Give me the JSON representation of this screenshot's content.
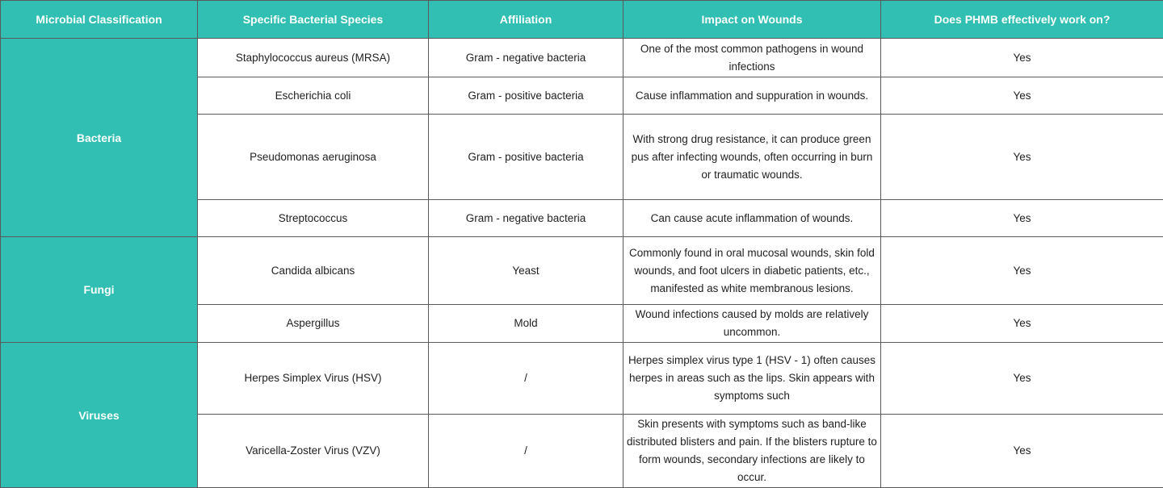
{
  "table": {
    "header": [
      "Microbial Classification",
      "Specific Bacterial Species",
      "Affiliation",
      "Impact on Wounds",
      "Does PHMB effectively work on?"
    ],
    "groups": [
      {
        "label": "Bacteria",
        "rows": [
          [
            "Staphylococcus aureus (MRSA)",
            "Gram - negative bacteria",
            "One of the most common pathogens in wound infections",
            "Yes"
          ],
          [
            "Escherichia coli",
            "Gram - positive bacteria",
            "Cause inflammation and suppuration in wounds.",
            "Yes"
          ],
          [
            "Pseudomonas aeruginosa",
            "Gram - positive bacteria",
            "With strong drug resistance, it can produce green pus after infecting wounds, often occurring in burn or traumatic wounds.",
            "Yes"
          ],
          [
            "Streptococcus",
            "Gram - negative bacteria",
            "Can cause acute inflammation of wounds.",
            "Yes"
          ]
        ]
      },
      {
        "label": "Fungi",
        "rows": [
          [
            "Candida albicans",
            "Yeast",
            "Commonly found in oral mucosal wounds, skin fold wounds, and foot ulcers in diabetic patients, etc., manifested as white membranous lesions.",
            "Yes"
          ],
          [
            "Aspergillus",
            "Mold",
            "Wound infections caused by molds are relatively uncommon.",
            "Yes"
          ]
        ]
      },
      {
        "label": "Viruses",
        "rows": [
          [
            "Herpes Simplex Virus (HSV)",
            "/",
            "Herpes simplex virus type 1 (HSV - 1) often causes herpes in areas such as the lips. Skin appears with symptoms such",
            "Yes"
          ],
          [
            "Varicella-Zoster Virus (VZV)",
            "/",
            "Skin presents with symptoms such as band-like distributed blisters and pain. If the blisters rupture to form wounds, secondary infections are likely to occur.",
            "Yes"
          ]
        ]
      }
    ]
  }
}
